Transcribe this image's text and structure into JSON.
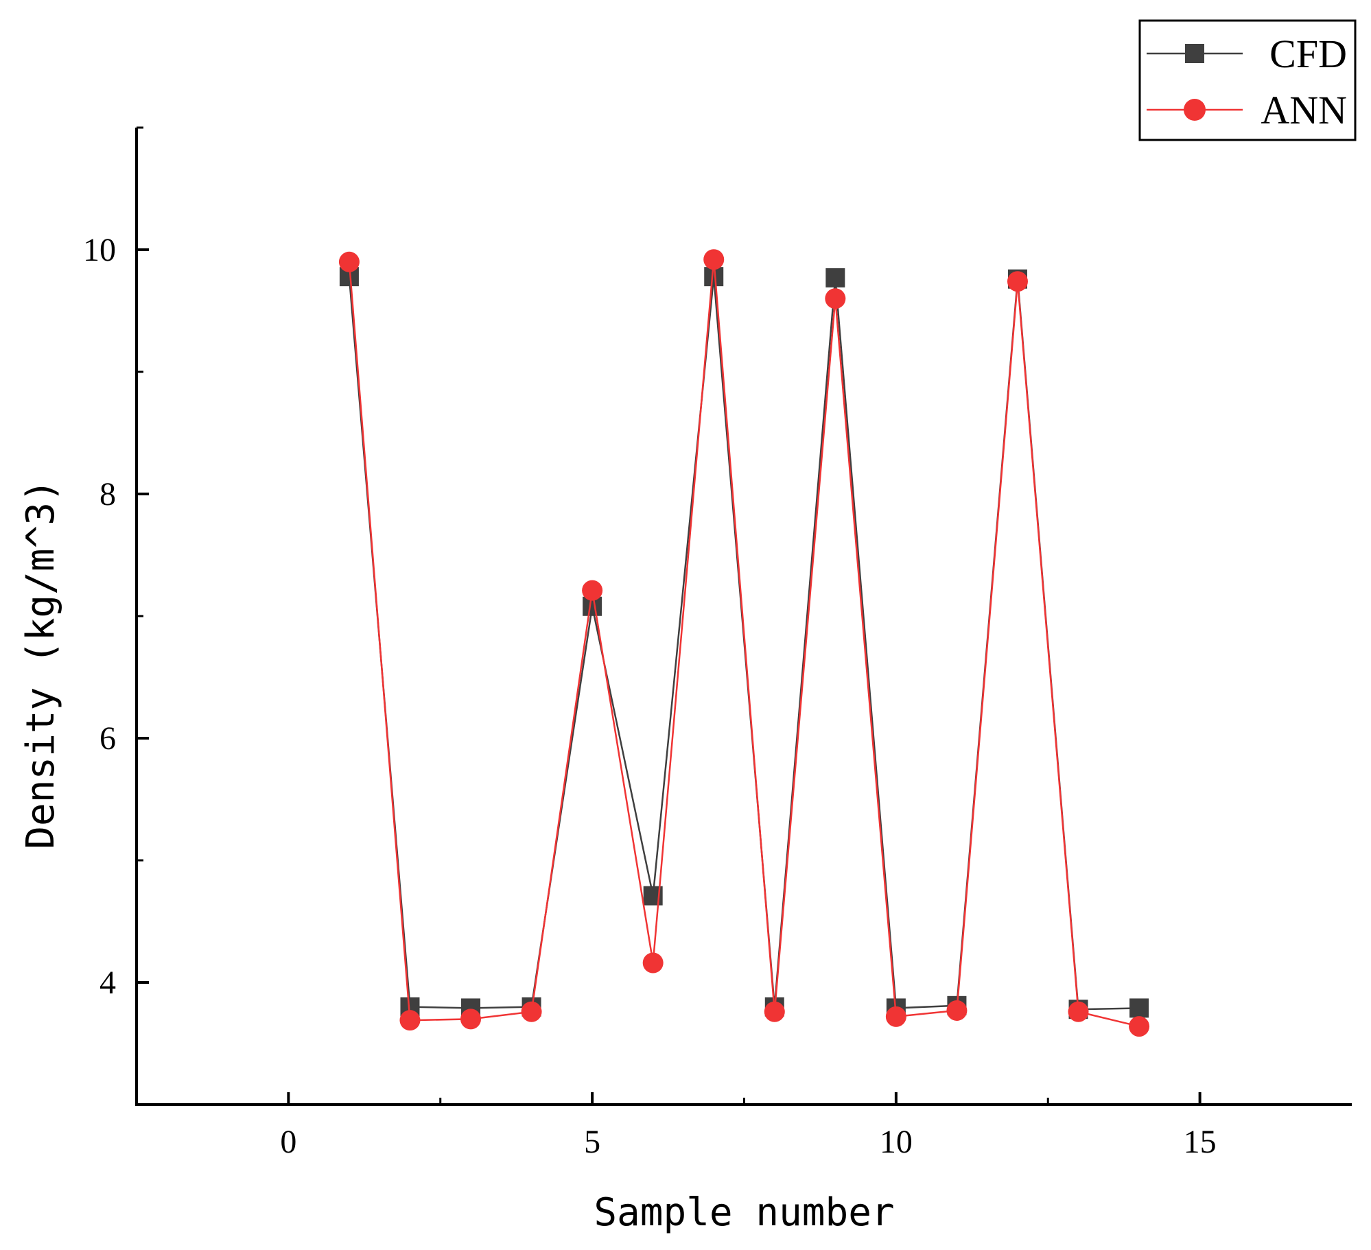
{
  "chart_data": {
    "type": "line",
    "title": "",
    "xlabel": "Sample number",
    "ylabel": "Density (kg/m^3)",
    "xlim": [
      -2.5,
      17.5
    ],
    "ylim": [
      3.0,
      11.0
    ],
    "x_ticks": [
      0,
      5,
      10,
      15
    ],
    "x_tick_labels": [
      "0",
      "5",
      "10",
      "15"
    ],
    "x_minor_ticks": [
      2.5,
      7.5,
      12.5
    ],
    "y_ticks": [
      4,
      6,
      8,
      10
    ],
    "y_tick_labels": [
      "4",
      "6",
      "8",
      "10"
    ],
    "y_minor_ticks": [
      3,
      5,
      7,
      9,
      11
    ],
    "grid": false,
    "legend_position": "top-right",
    "series": [
      {
        "name": "CFD",
        "color": "#3f3f3f",
        "marker": "square",
        "x": [
          1,
          2,
          3,
          4,
          5,
          6,
          7,
          8,
          9,
          10,
          11,
          12,
          13,
          14
        ],
        "values": [
          9.78,
          3.8,
          3.79,
          3.8,
          7.08,
          4.71,
          9.78,
          3.8,
          9.77,
          3.79,
          3.81,
          9.76,
          3.78,
          3.79
        ]
      },
      {
        "name": "ANN",
        "color": "#f03434",
        "marker": "circle",
        "x": [
          1,
          2,
          3,
          4,
          5,
          6,
          7,
          8,
          9,
          10,
          11,
          12,
          13,
          14
        ],
        "values": [
          9.9,
          3.69,
          3.7,
          3.76,
          7.21,
          4.16,
          9.92,
          3.76,
          9.6,
          3.72,
          3.77,
          9.74,
          3.76,
          3.64
        ]
      }
    ]
  }
}
